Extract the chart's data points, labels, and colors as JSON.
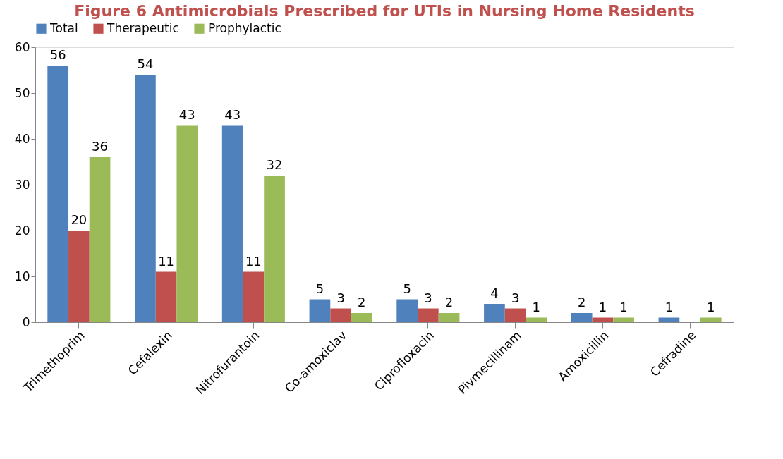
{
  "chart_data": {
    "type": "bar",
    "title": "Figure 6 Antimicrobials Prescribed for UTIs in Nursing Home Residents",
    "categories": [
      "Trimethoprim",
      "Cefalexin",
      "Nitrofurantoin",
      "Co-amoxiclav",
      "Ciprofloxacin",
      "Pivmecillinam",
      "Amoxicillin",
      "Cefradine"
    ],
    "series": [
      {
        "name": "Total",
        "color": "#4f81bd",
        "values": [
          56,
          54,
          43,
          5,
          5,
          4,
          2,
          1
        ]
      },
      {
        "name": "Therapeutic",
        "color": "#c0504d",
        "values": [
          20,
          11,
          11,
          3,
          3,
          3,
          1,
          null
        ]
      },
      {
        "name": "Prophylactic",
        "color": "#9bbb59",
        "values": [
          36,
          43,
          32,
          2,
          2,
          1,
          1,
          1
        ]
      }
    ],
    "ylim": [
      0,
      60
    ],
    "yticks": [
      0,
      10,
      20,
      30,
      40,
      50,
      60
    ],
    "grid": false,
    "legend": "top",
    "data_labels": true
  }
}
